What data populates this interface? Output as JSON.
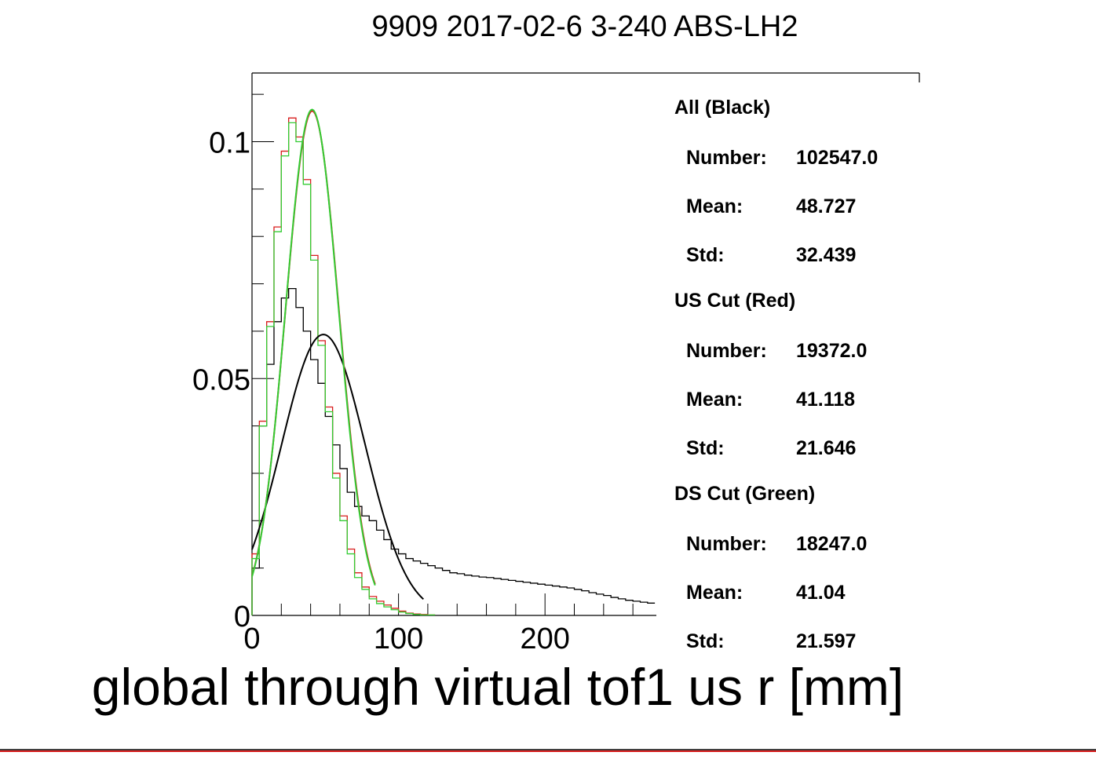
{
  "chart_data": {
    "type": "line",
    "title": "9909 2017-02-6 3-240 ABS-LH2",
    "xlabel": "global through virtual tof1 us r [mm]",
    "ylabel": "",
    "xlim": [
      0,
      276
    ],
    "ylim": [
      0,
      0.1145
    ],
    "x_ticks": [
      0,
      100,
      200
    ],
    "x_tick_labels": [
      "0",
      "100",
      "200"
    ],
    "y_ticks": [
      0,
      0.05,
      0.1
    ],
    "y_tick_labels": [
      "0",
      "0.05",
      "0.1"
    ],
    "grid": false,
    "bin_width": 5,
    "series": [
      {
        "color": "#000000",
        "style": "step",
        "values": [
          0.01,
          0.04,
          0.053,
          0.062,
          0.067,
          0.069,
          0.065,
          0.06,
          0.054,
          0.049,
          0.042,
          0.036,
          0.031,
          0.026,
          0.023,
          0.021,
          0.02,
          0.018,
          0.016,
          0.014,
          0.013,
          0.012,
          0.0115,
          0.011,
          0.0105,
          0.01,
          0.0095,
          0.009,
          0.0088,
          0.0085,
          0.0083,
          0.0081,
          0.008,
          0.0078,
          0.0076,
          0.0074,
          0.0072,
          0.007,
          0.0068,
          0.0066,
          0.0064,
          0.0062,
          0.006,
          0.0058,
          0.0055,
          0.0052,
          0.0048,
          0.0045,
          0.0042,
          0.0038,
          0.0035,
          0.0032,
          0.003,
          0.0028,
          0.0026
        ]
      },
      {
        "color": "#d81c1c",
        "style": "step",
        "values": [
          0.013,
          0.041,
          0.062,
          0.082,
          0.098,
          0.105,
          0.101,
          0.092,
          0.076,
          0.058,
          0.044,
          0.03,
          0.021,
          0.014,
          0.009,
          0.006,
          0.004,
          0.003,
          0.0022,
          0.0015,
          0.0009,
          0.0005,
          0.0003,
          0.0002,
          0.0001
        ]
      },
      {
        "color": "#33cc33",
        "style": "step",
        "values": [
          0.012,
          0.04,
          0.061,
          0.081,
          0.097,
          0.104,
          0.1,
          0.091,
          0.075,
          0.057,
          0.043,
          0.029,
          0.02,
          0.013,
          0.008,
          0.0055,
          0.0035,
          0.0025,
          0.0018,
          0.0012,
          0.0007,
          0.0004,
          0.0002,
          0.0001,
          0.0001
        ]
      },
      {
        "color": "#000000",
        "style": "curve",
        "fit": {
          "amplitude": 0.0593,
          "mean": 48.7,
          "sigma": 28.6,
          "x_range": [
            0,
            117
          ]
        }
      },
      {
        "color": "#d81c1c",
        "style": "curve",
        "fit": {
          "amplitude": 0.1065,
          "mean": 41.1,
          "sigma": 18.2,
          "x_range": [
            0,
            84
          ]
        }
      },
      {
        "color": "#33cc33",
        "style": "curve",
        "fit": {
          "amplitude": 0.1068,
          "mean": 41.0,
          "sigma": 18.1,
          "x_range": [
            0,
            84
          ]
        }
      }
    ]
  },
  "stats": [
    {
      "heading": "All (Black)",
      "rows": [
        {
          "label": "Number:",
          "value": "102547.0"
        },
        {
          "label": "Mean:",
          "value": "48.727"
        },
        {
          "label": "Std:",
          "value": "32.439"
        }
      ]
    },
    {
      "heading": "US Cut (Red)",
      "rows": [
        {
          "label": "Number:",
          "value": "19372.0"
        },
        {
          "label": "Mean:",
          "value": "41.118"
        },
        {
          "label": "Std:",
          "value": "21.646"
        }
      ]
    },
    {
      "heading": "DS Cut (Green)",
      "rows": [
        {
          "label": "Number:",
          "value": "18247.0"
        },
        {
          "label": "Mean:",
          "value": "41.04"
        },
        {
          "label": "Std:",
          "value": "21.597"
        }
      ]
    }
  ]
}
